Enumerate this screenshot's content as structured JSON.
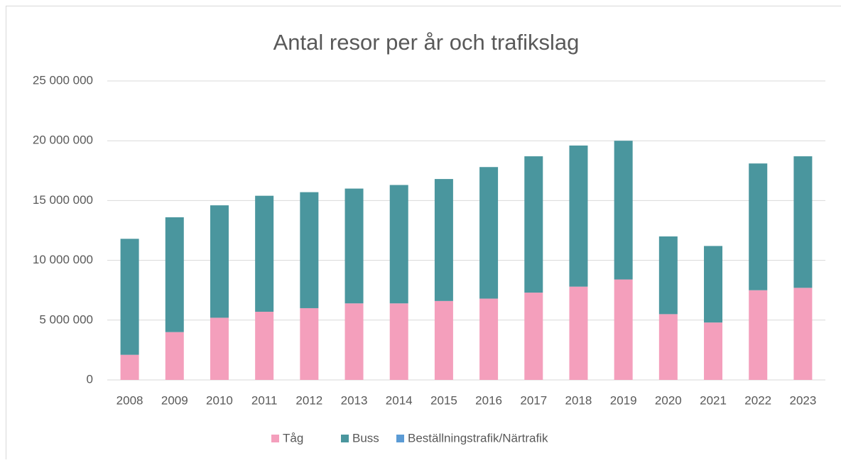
{
  "chart_data": {
    "type": "stacked_bar",
    "title": "Antal resor per år och trafikslag",
    "categories": [
      "2008",
      "2009",
      "2010",
      "2011",
      "2012",
      "2013",
      "2014",
      "2015",
      "2016",
      "2017",
      "2018",
      "2019",
      "2020",
      "2021",
      "2022",
      "2023"
    ],
    "series": [
      {
        "name": "Tåg",
        "color": "#f49fbc",
        "values": [
          2100000,
          4000000,
          5200000,
          5700000,
          6000000,
          6400000,
          6400000,
          6600000,
          6800000,
          7300000,
          7800000,
          8400000,
          5500000,
          4800000,
          7500000,
          7700000
        ]
      },
      {
        "name": "Buss",
        "color": "#4a969e",
        "values": [
          9700000,
          9600000,
          9400000,
          9700000,
          9700000,
          9600000,
          9900000,
          10200000,
          11000000,
          11400000,
          11800000,
          11600000,
          6500000,
          6400000,
          10600000,
          11000000
        ]
      },
      {
        "name": "Beställningstrafik/Närtrafik",
        "color": "#5b9bd5",
        "values": [
          0,
          0,
          0,
          0,
          0,
          0,
          0,
          0,
          0,
          0,
          0,
          0,
          0,
          0,
          0,
          0
        ]
      }
    ],
    "ylim": [
      0,
      25000000
    ],
    "yticks": [
      0,
      {
        "value": 5000000,
        "label": "5 000 000"
      },
      {
        "value": 10000000,
        "label": "10 000 000"
      },
      {
        "value": 15000000,
        "label": "15 000 000"
      },
      {
        "value": 20000000,
        "label": "20 000 000"
      },
      {
        "value": 25000000,
        "label": "25 000 000"
      }
    ],
    "grid": true,
    "legend": "bottom"
  }
}
